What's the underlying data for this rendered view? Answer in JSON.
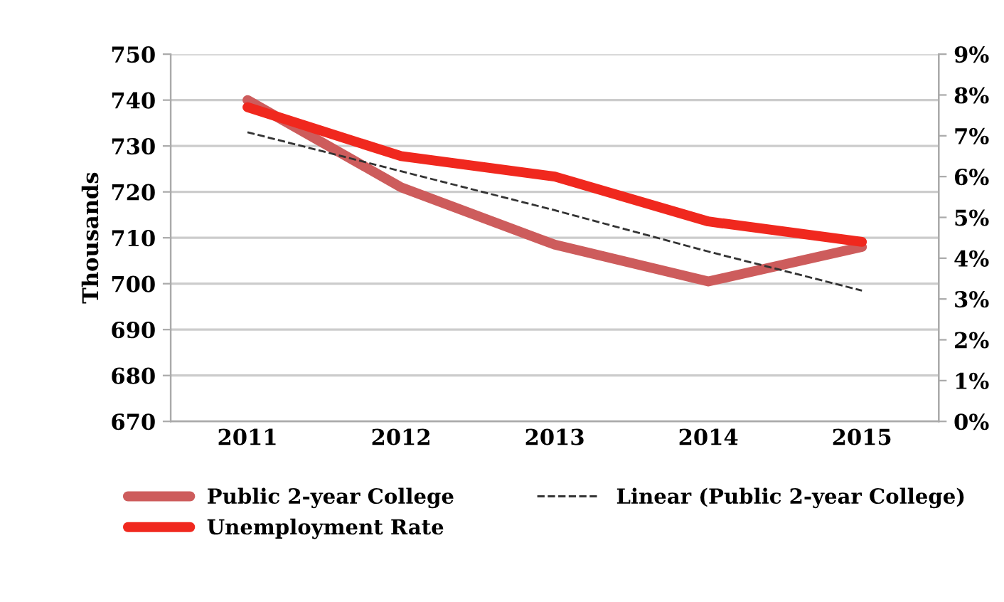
{
  "chart_data": {
    "type": "line",
    "ylabel": "Thousands",
    "categories": [
      "2011",
      "2012",
      "2013",
      "2014",
      "2015"
    ],
    "series": [
      {
        "name": "Public 2-year College",
        "color": "#cd5c5c",
        "values": [
          740,
          721,
          708.5,
          700.5,
          708
        ]
      },
      {
        "name": "Unemployment Rate",
        "color": "#f0281e",
        "values": [
          7.7,
          6.5,
          6.0,
          4.9,
          4.4
        ],
        "axis": "y2"
      },
      {
        "name": "Linear (Public 2-year College)",
        "color": "#333333",
        "values": [
          733,
          724.5,
          716,
          707,
          698.5
        ],
        "line_style": "dashed"
      }
    ],
    "ylim": [
      670,
      750
    ],
    "yticks": [
      670,
      680,
      690,
      700,
      710,
      720,
      730,
      740,
      750
    ],
    "y2lim": [
      0,
      9
    ],
    "y2ticks": [
      {
        "value": 0,
        "label": "0%"
      },
      {
        "value": 1,
        "label": "1%"
      },
      {
        "value": 2,
        "label": "2%"
      },
      {
        "value": 3,
        "label": "3%"
      },
      {
        "value": 4,
        "label": "4%"
      },
      {
        "value": 5,
        "label": "5%"
      },
      {
        "value": 6,
        "label": "6%"
      },
      {
        "value": 7,
        "label": "7%"
      },
      {
        "value": 8,
        "label": "8%"
      },
      {
        "value": 9,
        "label": "9%"
      }
    ],
    "grid": "y",
    "legend": "bottom",
    "marker": "none"
  }
}
